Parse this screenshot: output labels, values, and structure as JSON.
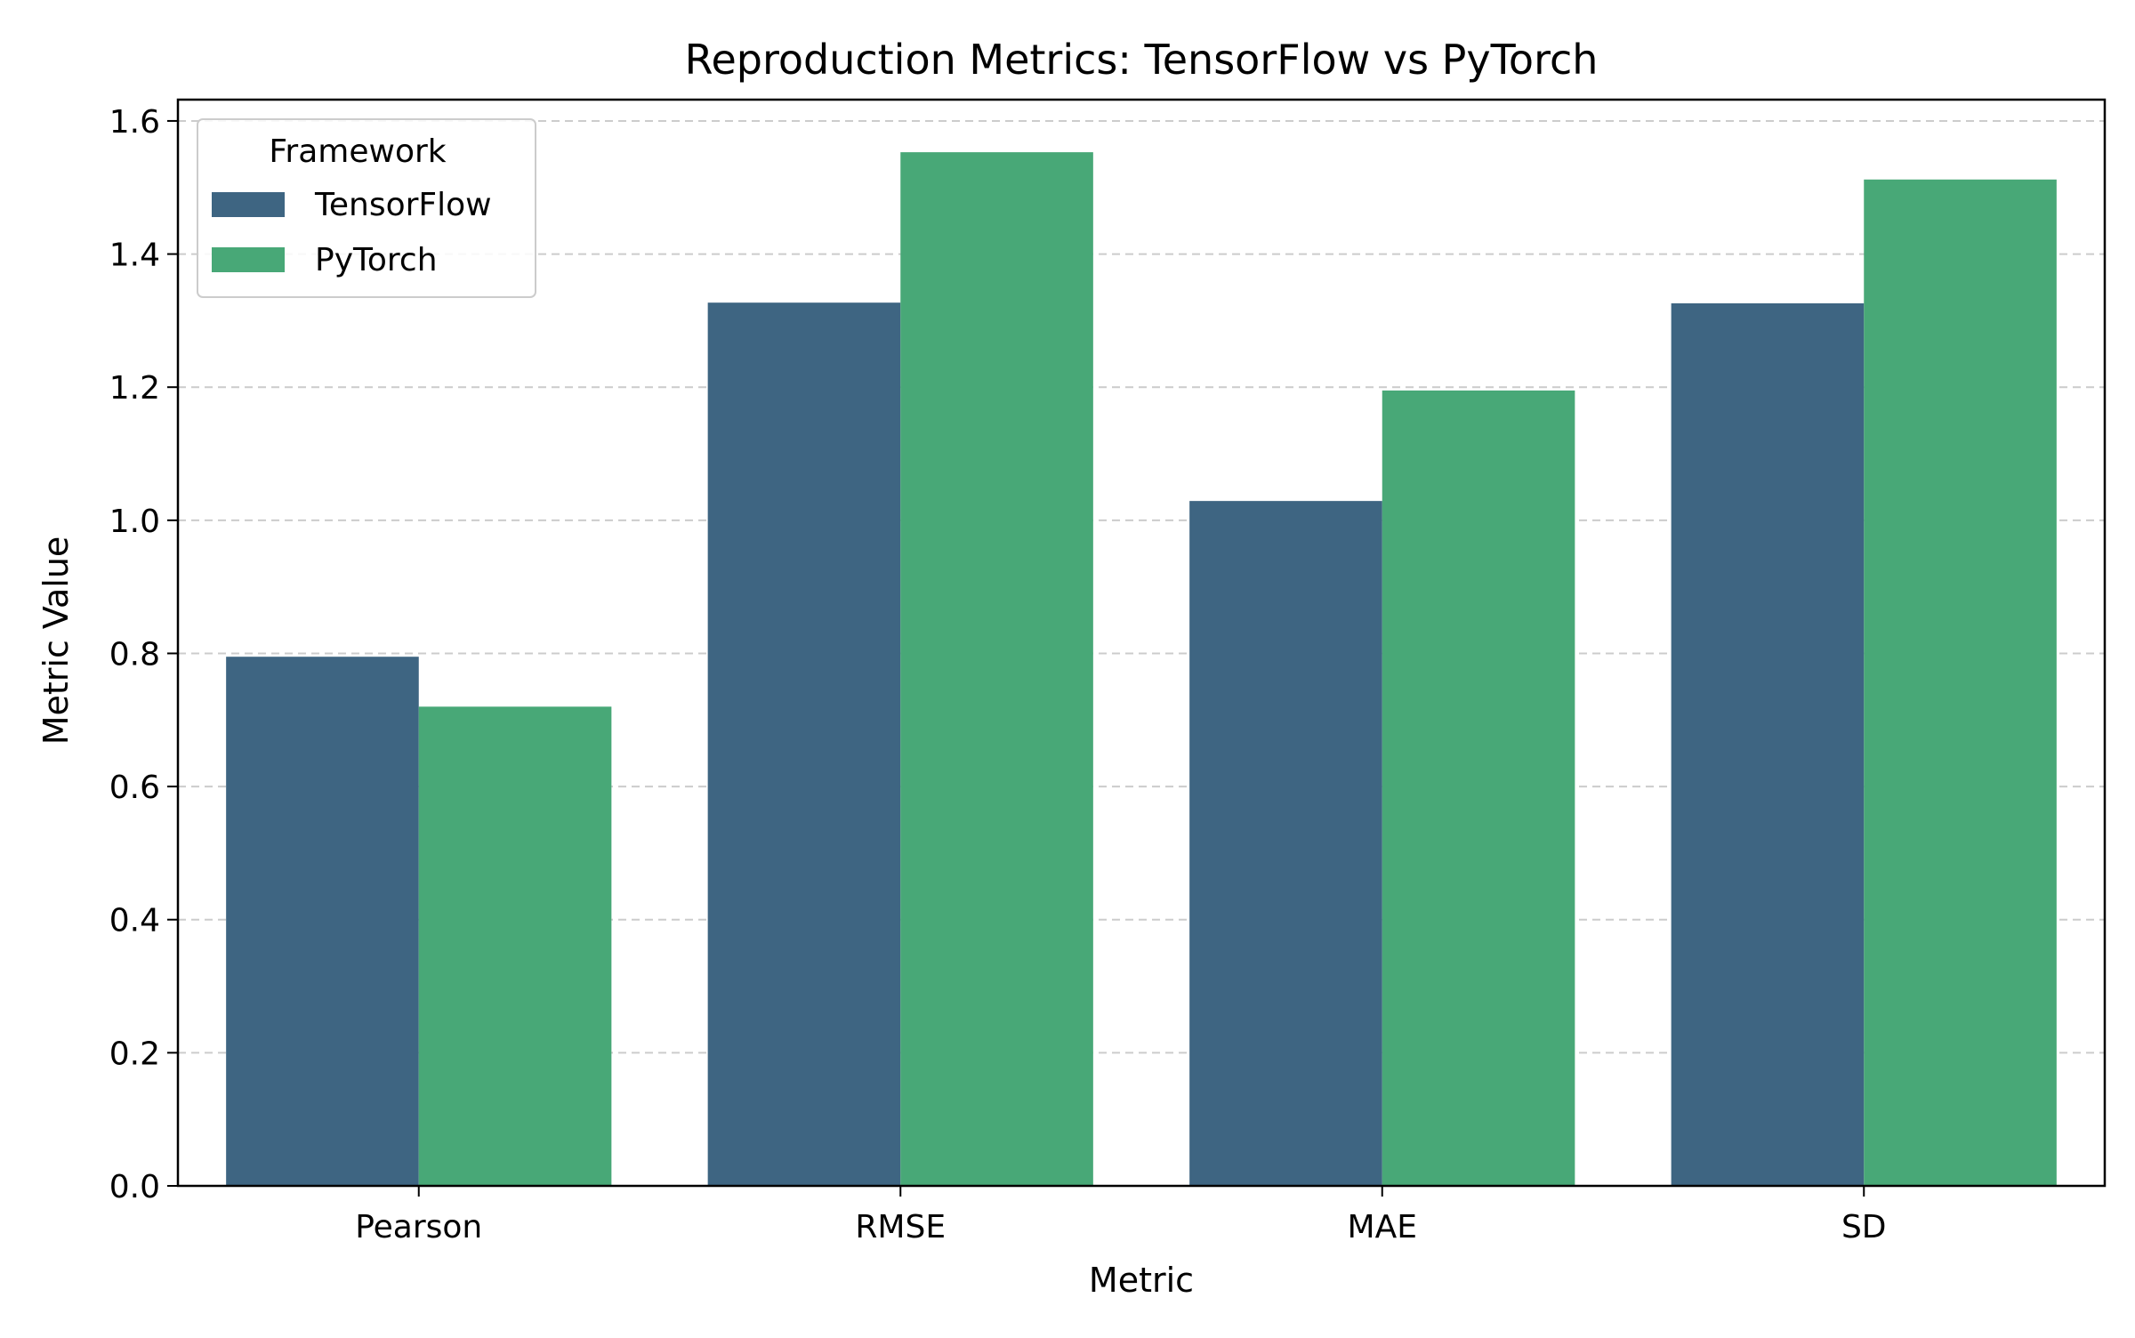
{
  "chart_data": {
    "type": "bar",
    "title": "Reproduction Metrics: TensorFlow vs PyTorch",
    "xlabel": "Metric",
    "ylabel": "Metric Value",
    "categories": [
      "Pearson",
      "RMSE",
      "MAE",
      "SD"
    ],
    "series": [
      {
        "name": "TensorFlow",
        "color": "#3e6582",
        "values": [
          0.795,
          1.327,
          1.029,
          1.326
        ]
      },
      {
        "name": "PyTorch",
        "color": "#48a877",
        "values": [
          0.72,
          1.553,
          1.195,
          1.512
        ]
      }
    ],
    "ylim": [
      0,
      1.632
    ],
    "yticks": [
      "0.0",
      "0.2",
      "0.4",
      "0.6",
      "0.8",
      "1.0",
      "1.2",
      "1.4",
      "1.6"
    ],
    "grid": "y-dashed",
    "legend": {
      "title": "Framework",
      "placement": "top-left"
    }
  }
}
